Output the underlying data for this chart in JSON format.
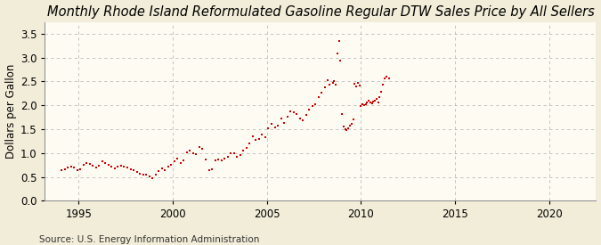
{
  "title": "Monthly Rhode Island Reformulated Gasoline Regular DTW Sales Price by All Sellers",
  "ylabel": "Dollars per Gallon",
  "source": "Source: U.S. Energy Information Administration",
  "background_color": "#F2EDD8",
  "plot_bg_color": "#FDFBF2",
  "marker_color": "#CC0000",
  "marker_size": 4,
  "xlim": [
    1993.2,
    2022.5
  ],
  "ylim": [
    0.0,
    3.75
  ],
  "yticks": [
    0.0,
    0.5,
    1.0,
    1.5,
    2.0,
    2.5,
    3.0,
    3.5
  ],
  "xticks": [
    1995,
    2000,
    2005,
    2010,
    2015,
    2020
  ],
  "title_fontsize": 10.5,
  "label_fontsize": 8.5,
  "tick_fontsize": 8.5,
  "source_fontsize": 7.5,
  "data": [
    [
      1994.083,
      0.65
    ],
    [
      1994.25,
      0.67
    ],
    [
      1994.417,
      0.7
    ],
    [
      1994.583,
      0.72
    ],
    [
      1994.75,
      0.69
    ],
    [
      1994.917,
      0.65
    ],
    [
      1995.083,
      0.67
    ],
    [
      1995.25,
      0.75
    ],
    [
      1995.417,
      0.8
    ],
    [
      1995.583,
      0.77
    ],
    [
      1995.75,
      0.73
    ],
    [
      1995.917,
      0.7
    ],
    [
      1996.083,
      0.74
    ],
    [
      1996.25,
      0.82
    ],
    [
      1996.417,
      0.8
    ],
    [
      1996.583,
      0.76
    ],
    [
      1996.75,
      0.71
    ],
    [
      1996.917,
      0.68
    ],
    [
      1997.083,
      0.71
    ],
    [
      1997.25,
      0.74
    ],
    [
      1997.417,
      0.71
    ],
    [
      1997.583,
      0.69
    ],
    [
      1997.75,
      0.67
    ],
    [
      1997.917,
      0.64
    ],
    [
      1998.083,
      0.6
    ],
    [
      1998.25,
      0.57
    ],
    [
      1998.417,
      0.55
    ],
    [
      1998.583,
      0.54
    ],
    [
      1998.75,
      0.52
    ],
    [
      1998.917,
      0.48
    ],
    [
      1999.083,
      0.54
    ],
    [
      1999.25,
      0.63
    ],
    [
      1999.417,
      0.68
    ],
    [
      1999.583,
      0.65
    ],
    [
      1999.75,
      0.71
    ],
    [
      1999.917,
      0.76
    ],
    [
      2000.083,
      0.83
    ],
    [
      2000.25,
      0.89
    ],
    [
      2000.417,
      0.8
    ],
    [
      2000.583,
      0.84
    ],
    [
      2000.75,
      1.01
    ],
    [
      2000.917,
      1.06
    ],
    [
      2001.083,
      1.0
    ],
    [
      2001.25,
      0.98
    ],
    [
      2001.417,
      1.13
    ],
    [
      2001.583,
      1.09
    ],
    [
      2001.75,
      0.87
    ],
    [
      2001.917,
      0.65
    ],
    [
      2002.083,
      0.67
    ],
    [
      2002.25,
      0.84
    ],
    [
      2002.417,
      0.87
    ],
    [
      2002.583,
      0.84
    ],
    [
      2002.75,
      0.89
    ],
    [
      2002.917,
      0.93
    ],
    [
      2003.083,
      1.0
    ],
    [
      2003.25,
      1.0
    ],
    [
      2003.417,
      0.92
    ],
    [
      2003.583,
      0.96
    ],
    [
      2003.75,
      1.06
    ],
    [
      2003.917,
      1.11
    ],
    [
      2004.083,
      1.21
    ],
    [
      2004.25,
      1.36
    ],
    [
      2004.417,
      1.28
    ],
    [
      2004.583,
      1.3
    ],
    [
      2004.75,
      1.38
    ],
    [
      2004.917,
      1.34
    ],
    [
      2005.083,
      1.52
    ],
    [
      2005.25,
      1.62
    ],
    [
      2005.417,
      1.53
    ],
    [
      2005.583,
      1.57
    ],
    [
      2005.75,
      1.72
    ],
    [
      2005.917,
      1.63
    ],
    [
      2006.083,
      1.76
    ],
    [
      2006.25,
      1.87
    ],
    [
      2006.417,
      1.86
    ],
    [
      2006.583,
      1.82
    ],
    [
      2006.75,
      1.72
    ],
    [
      2006.917,
      1.68
    ],
    [
      2007.083,
      1.8
    ],
    [
      2007.25,
      1.92
    ],
    [
      2007.417,
      1.99
    ],
    [
      2007.583,
      2.02
    ],
    [
      2007.75,
      2.17
    ],
    [
      2007.917,
      2.27
    ],
    [
      2008.083,
      2.38
    ],
    [
      2008.25,
      2.52
    ],
    [
      2008.333,
      2.44
    ],
    [
      2008.5,
      2.47
    ],
    [
      2008.583,
      2.51
    ],
    [
      2008.667,
      2.43
    ],
    [
      2008.75,
      3.08
    ],
    [
      2008.833,
      3.35
    ],
    [
      2008.917,
      2.94
    ],
    [
      2009.0,
      1.82
    ],
    [
      2009.083,
      1.55
    ],
    [
      2009.167,
      1.5
    ],
    [
      2009.25,
      1.49
    ],
    [
      2009.333,
      1.52
    ],
    [
      2009.417,
      1.58
    ],
    [
      2009.5,
      1.62
    ],
    [
      2009.583,
      1.7
    ],
    [
      2009.667,
      2.45
    ],
    [
      2009.75,
      2.4
    ],
    [
      2009.833,
      2.48
    ],
    [
      2009.917,
      2.42
    ],
    [
      2010.0,
      1.98
    ],
    [
      2010.083,
      2.03
    ],
    [
      2010.167,
      2.0
    ],
    [
      2010.25,
      2.03
    ],
    [
      2010.333,
      2.07
    ],
    [
      2010.417,
      2.09
    ],
    [
      2010.5,
      2.07
    ],
    [
      2010.583,
      2.05
    ],
    [
      2010.667,
      2.08
    ],
    [
      2010.75,
      2.1
    ],
    [
      2010.833,
      2.13
    ],
    [
      2010.917,
      2.06
    ],
    [
      2011.0,
      2.17
    ],
    [
      2011.083,
      2.28
    ],
    [
      2011.167,
      2.43
    ],
    [
      2011.25,
      2.57
    ],
    [
      2011.333,
      2.6
    ],
    [
      2011.5,
      2.57
    ]
  ]
}
